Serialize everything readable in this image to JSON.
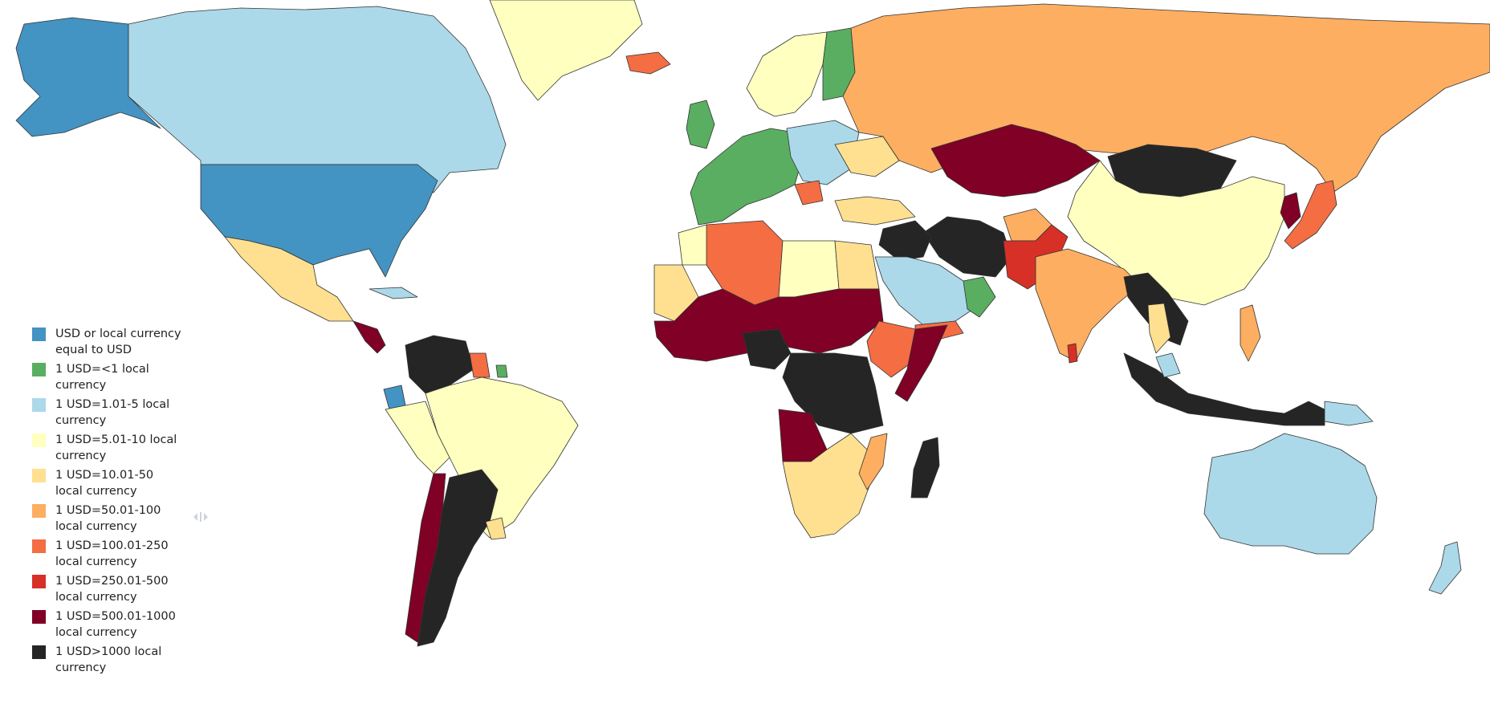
{
  "legend": {
    "items": [
      {
        "color": "#4393c3",
        "label": "USD or local currency equal to USD"
      },
      {
        "color": "#5aae61",
        "label": "1 USD=<1 local currency"
      },
      {
        "color": "#abd9e9",
        "label": "1 USD=1.01-5 local currency"
      },
      {
        "color": "#ffffbf",
        "label": "1 USD=5.01-10 local currency"
      },
      {
        "color": "#fee090",
        "label": "1 USD=10.01-50 local currency"
      },
      {
        "color": "#fdae61",
        "label": "1 USD=50.01-100 local currency"
      },
      {
        "color": "#f46d43",
        "label": "1 USD=100.01-250 local currency"
      },
      {
        "color": "#d73027",
        "label": "1 USD=250.01-500 local currency"
      },
      {
        "color": "#800026",
        "label": "1 USD=500.01-1000 local currency"
      },
      {
        "color": "#252525",
        "label": "1 USD>1000 local currency"
      }
    ]
  },
  "scroll_handle_icon": "drag-handle-icon"
}
